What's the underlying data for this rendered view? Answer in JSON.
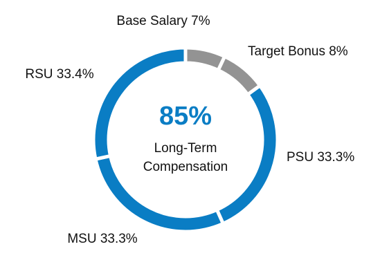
{
  "chart_data": {
    "type": "donut",
    "labels": [
      "Base Salary 7%",
      "Target Bonus 8%",
      "PSU 33.3%",
      "MSU 33.3%",
      "RSU 33.4%"
    ],
    "values": [
      7,
      8,
      33.3,
      33.3,
      33.4
    ],
    "colors": [
      "#939393",
      "#939393",
      "#0a7dc4",
      "#0a7dc4",
      "#0a7dc4"
    ],
    "center": {
      "value": 85,
      "label": "85%",
      "color": "#0a7dc4",
      "text": [
        "Long-Term",
        "Compensation"
      ]
    }
  }
}
